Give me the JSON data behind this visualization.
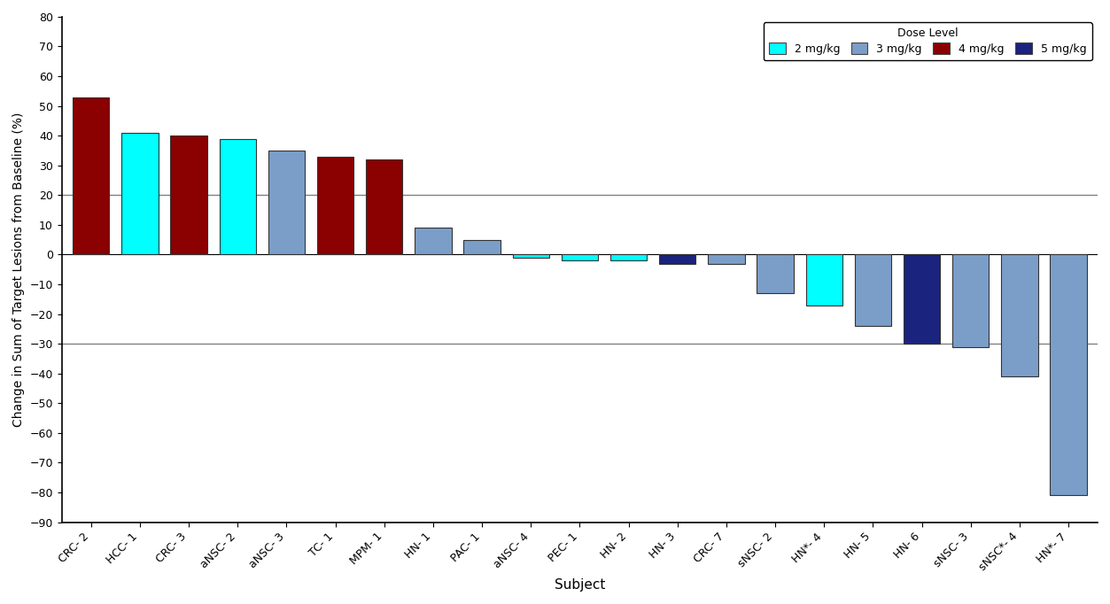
{
  "subjects": [
    "CRC- 2",
    "HCC- 1",
    "CRC- 3",
    "aNSC- 2",
    "aNSC- 3",
    "TC- 1",
    "MPM- 1",
    "HN- 1",
    "PAC- 1",
    "aNSC- 4",
    "PEC- 1",
    "HN- 2",
    "HN- 3",
    "CRC- 7",
    "sNSC- 2",
    "HN*- 4",
    "HN- 5",
    "HN- 6",
    "sNSC- 3",
    "sNSC*- 4",
    "HN*- 7"
  ],
  "values": [
    53,
    41,
    40,
    39,
    35,
    33,
    32,
    9,
    5,
    -1,
    -2,
    -2,
    -3,
    -3,
    -13,
    -17,
    -24,
    -30,
    -31,
    -41,
    -81
  ],
  "dose_levels": [
    "4mg",
    "2mg",
    "4mg",
    "2mg",
    "3mg",
    "4mg",
    "4mg",
    "3mg",
    "3mg",
    "2mg",
    "2mg",
    "2mg",
    "5mg",
    "3mg",
    "3mg",
    "2mg",
    "3mg",
    "5mg",
    "3mg",
    "3mg",
    "3mg"
  ],
  "colors": {
    "2mg": "#00FFFF",
    "3mg": "#7B9EC9",
    "4mg": "#8B0000",
    "5mg": "#1A237E"
  },
  "legend_labels": [
    "2 mg/kg",
    "3 mg/kg",
    "4 mg/kg",
    "5 mg/kg"
  ],
  "legend_colors": [
    "#00FFFF",
    "#7B9EC9",
    "#8B0000",
    "#1A237E"
  ],
  "ylabel": "Change in Sum of Target Lesions from Baseline (%)",
  "xlabel": "Subject",
  "ylim": [
    -90,
    80
  ],
  "yticks": [
    -90,
    -80,
    -70,
    -60,
    -50,
    -40,
    -30,
    -20,
    -10,
    0,
    10,
    20,
    30,
    40,
    50,
    60,
    70,
    80
  ],
  "hlines": [
    20,
    -30
  ],
  "background_color": "#ffffff",
  "legend_title": "Dose Level",
  "bar_edge_color": "#333333",
  "bar_width": 0.75
}
